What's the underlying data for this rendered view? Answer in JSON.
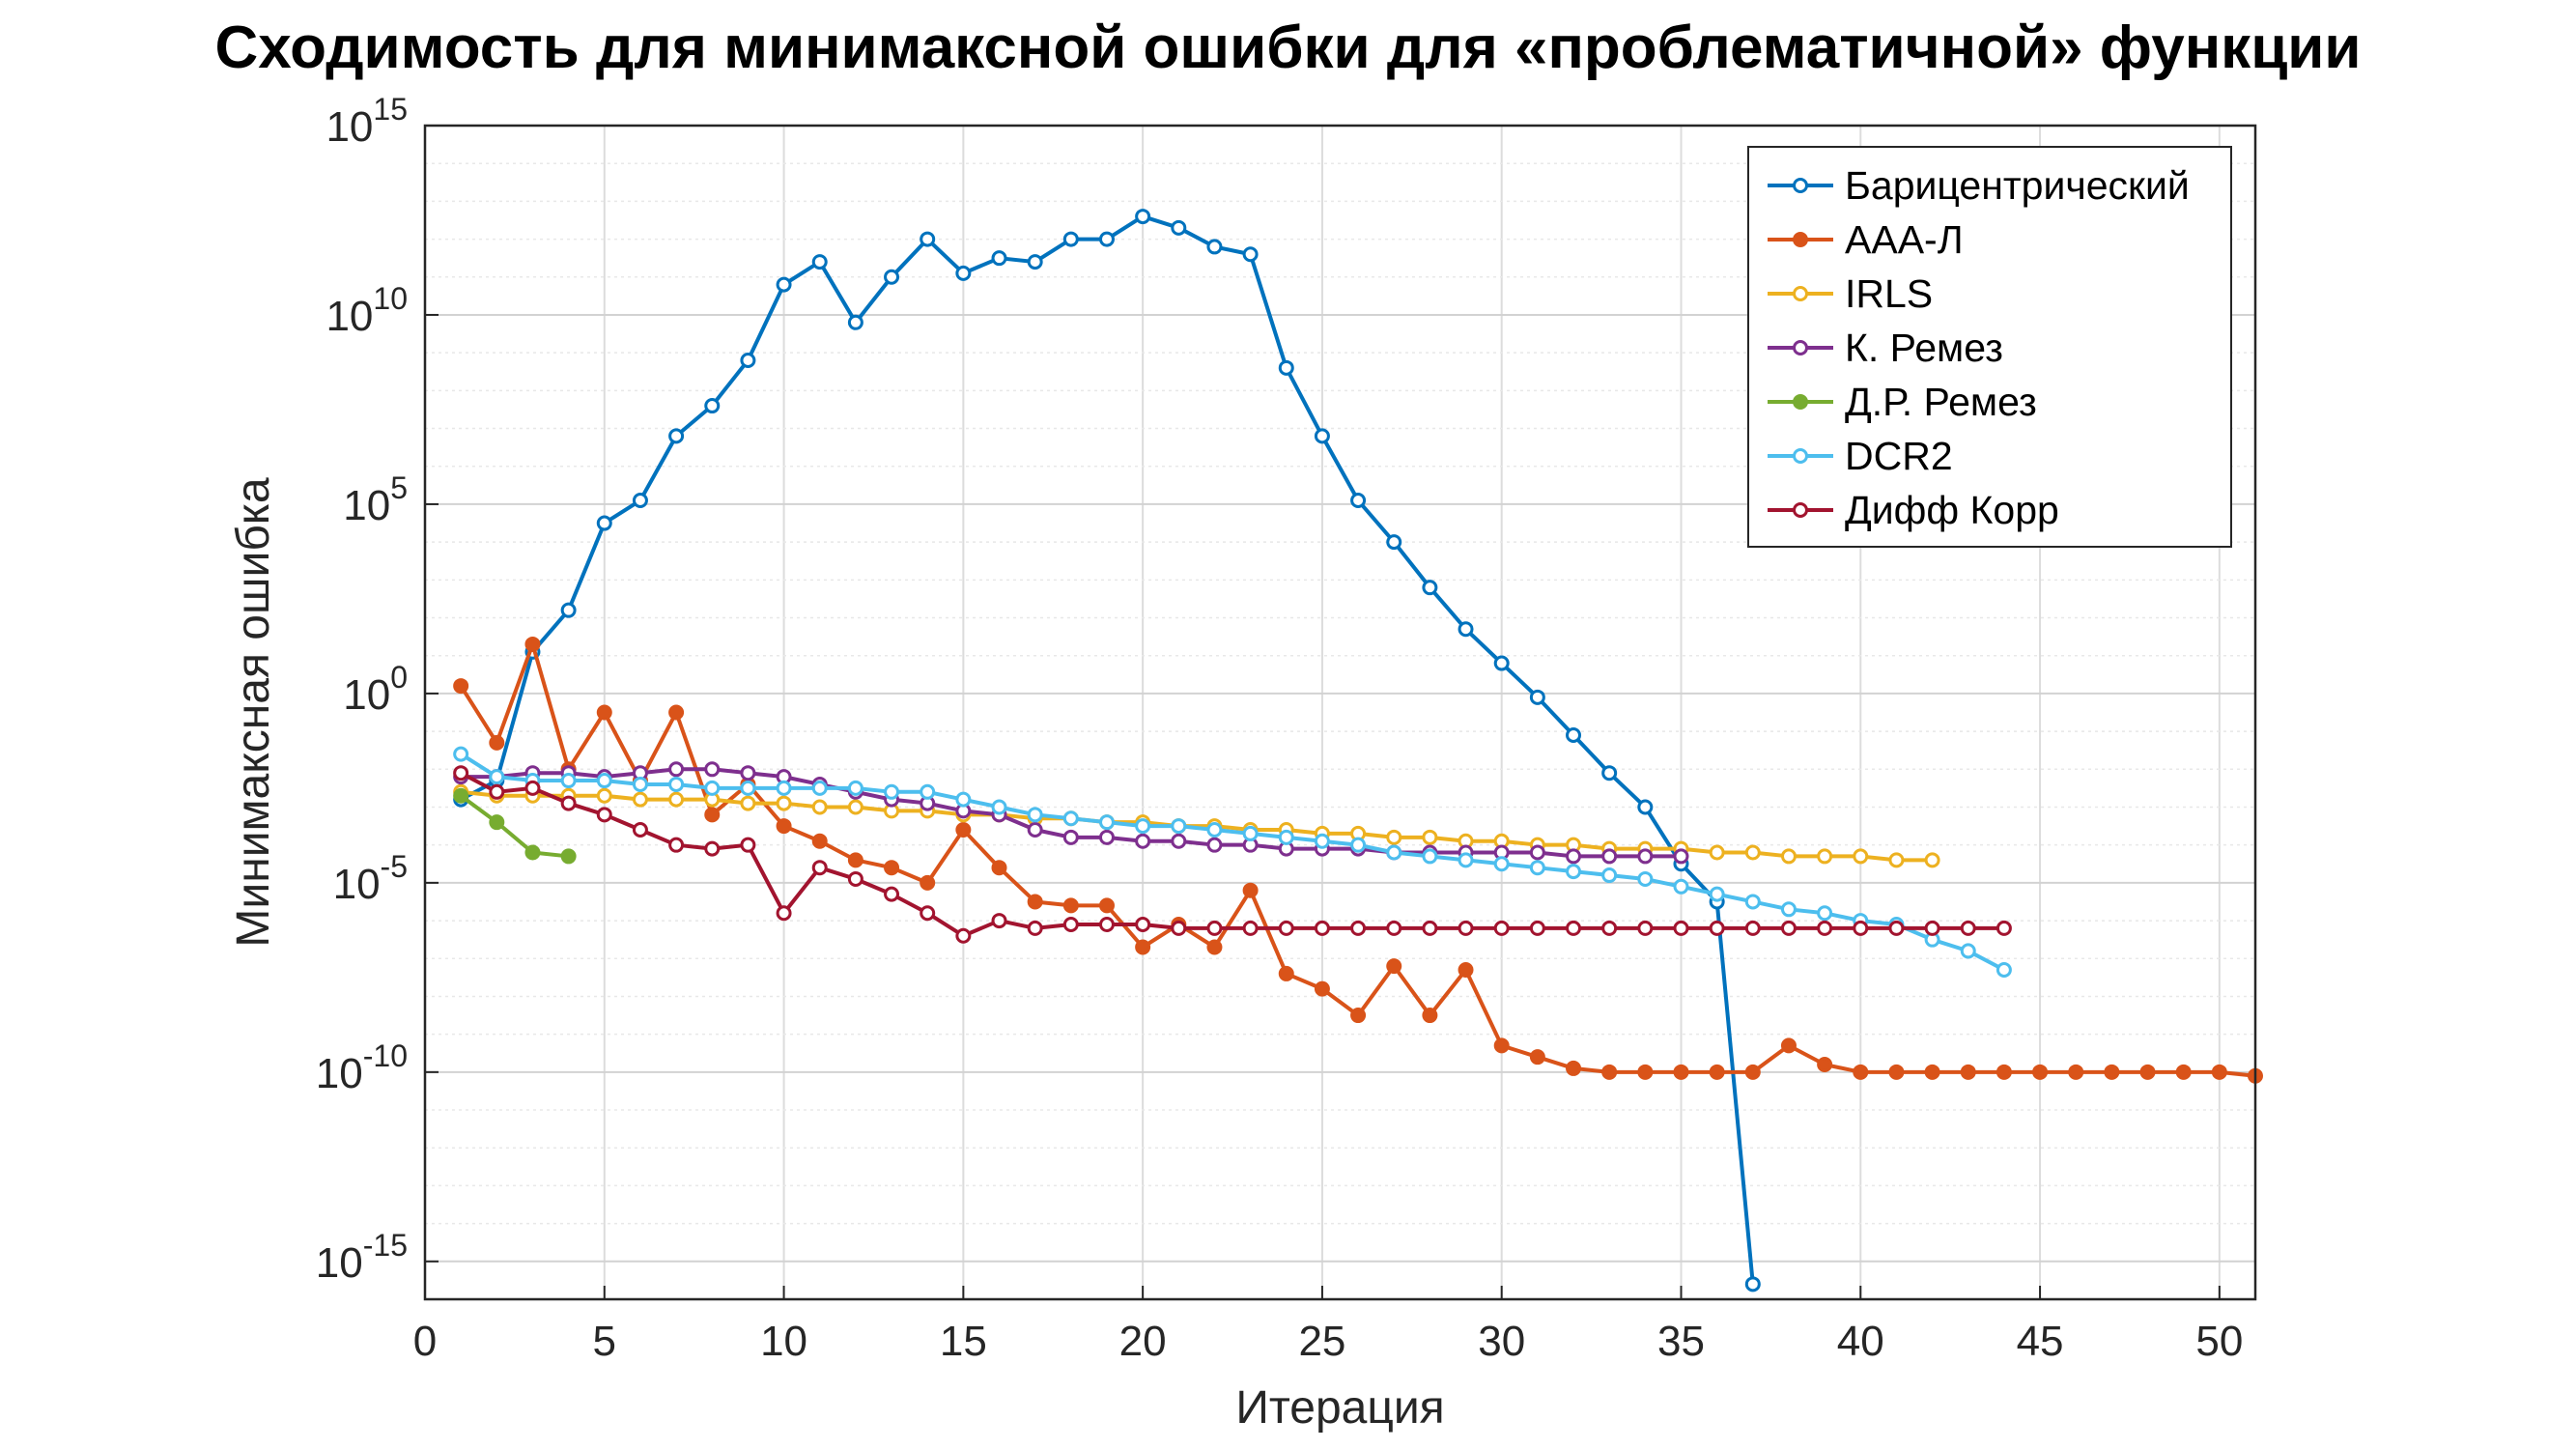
{
  "chart_data": {
    "type": "line",
    "title": "Сходимость для минимаксной ошибки для «проблематичной» функции",
    "xlabel": "Итерация",
    "ylabel": "Минимаксная ошибка",
    "xlim": [
      0,
      51
    ],
    "ylim_log10": [
      -16,
      15
    ],
    "yscale": "log",
    "grid": true,
    "legend_position": "top-right",
    "x_ticks": [
      0,
      5,
      10,
      15,
      20,
      25,
      30,
      35,
      40,
      45,
      50
    ],
    "y_ticks": [
      {
        "base": "10",
        "exp": "15",
        "log": 15
      },
      {
        "base": "10",
        "exp": "10",
        "log": 10
      },
      {
        "base": "10",
        "exp": "5",
        "log": 5
      },
      {
        "base": "10",
        "exp": "0",
        "log": 0
      },
      {
        "base": "10",
        "exp": "-5",
        "log": -5
      },
      {
        "base": "10",
        "exp": "-10",
        "log": -10
      },
      {
        "base": "10",
        "exp": "-15",
        "log": -15
      }
    ],
    "series": [
      {
        "name": "Барицентрический",
        "color": "#0072BD",
        "marker": "hollow",
        "x": [
          1,
          2,
          3,
          4,
          5,
          6,
          7,
          8,
          9,
          10,
          11,
          12,
          13,
          14,
          15,
          16,
          17,
          18,
          19,
          20,
          21,
          22,
          23,
          24,
          25,
          26,
          27,
          28,
          29,
          30,
          31,
          32,
          33,
          34,
          35,
          36,
          37
        ],
        "log10_y": [
          -2.8,
          -2.3,
          1.1,
          2.2,
          4.5,
          5.1,
          6.8,
          7.6,
          8.8,
          10.8,
          11.4,
          9.8,
          11.0,
          12.0,
          11.1,
          11.5,
          11.4,
          12.0,
          12.0,
          12.6,
          12.3,
          11.8,
          11.6,
          8.6,
          6.8,
          5.1,
          4.0,
          2.8,
          1.7,
          0.8,
          -0.1,
          -1.1,
          -2.1,
          -3.0,
          -4.5,
          -5.5,
          -15.6
        ]
      },
      {
        "name": "ААА-Л",
        "color": "#D95319",
        "marker": "filled",
        "x": [
          1,
          2,
          3,
          4,
          5,
          6,
          7,
          8,
          9,
          10,
          11,
          12,
          13,
          14,
          15,
          16,
          17,
          18,
          19,
          20,
          21,
          22,
          23,
          24,
          25,
          26,
          27,
          28,
          29,
          30,
          31,
          32,
          33,
          34,
          35,
          36,
          37,
          38,
          39,
          40,
          41,
          42,
          43,
          44,
          45,
          46,
          47,
          48,
          49,
          50,
          51
        ],
        "log10_y": [
          0.2,
          -1.3,
          1.3,
          -2.0,
          -0.5,
          -2.3,
          -0.5,
          -3.2,
          -2.4,
          -3.5,
          -3.9,
          -4.4,
          -4.6,
          -5.0,
          -3.6,
          -4.6,
          -5.5,
          -5.6,
          -5.6,
          -6.7,
          -6.1,
          -6.7,
          -5.2,
          -7.4,
          -7.8,
          -8.5,
          -7.2,
          -8.5,
          -7.3,
          -9.3,
          -9.6,
          -9.9,
          -10.0,
          -10.0,
          -10.0,
          -10.0,
          -10.0,
          -9.3,
          -9.8,
          -10.0,
          -10.0,
          -10.0,
          -10.0,
          -10.0,
          -10.0,
          -10.0,
          -10.0,
          -10.0,
          -10.0,
          -10.0,
          -10.1
        ]
      },
      {
        "name": "IRLS",
        "color": "#EDB120",
        "marker": "hollow",
        "x": [
          1,
          2,
          3,
          4,
          5,
          6,
          7,
          8,
          9,
          10,
          11,
          12,
          13,
          14,
          15,
          16,
          17,
          18,
          19,
          20,
          21,
          22,
          23,
          24,
          25,
          26,
          27,
          28,
          29,
          30,
          31,
          32,
          33,
          34,
          35,
          36,
          37,
          38,
          39,
          40,
          41,
          42
        ],
        "log10_y": [
          -2.6,
          -2.7,
          -2.7,
          -2.7,
          -2.7,
          -2.8,
          -2.8,
          -2.8,
          -2.9,
          -2.9,
          -3.0,
          -3.0,
          -3.1,
          -3.1,
          -3.2,
          -3.2,
          -3.3,
          -3.3,
          -3.4,
          -3.4,
          -3.5,
          -3.5,
          -3.6,
          -3.6,
          -3.7,
          -3.7,
          -3.8,
          -3.8,
          -3.9,
          -3.9,
          -4.0,
          -4.0,
          -4.1,
          -4.1,
          -4.1,
          -4.2,
          -4.2,
          -4.3,
          -4.3,
          -4.3,
          -4.4,
          -4.4
        ]
      },
      {
        "name": "К. Ремез",
        "color": "#7E2F8E",
        "marker": "hollow",
        "x": [
          1,
          2,
          3,
          4,
          5,
          6,
          7,
          8,
          9,
          10,
          11,
          12,
          13,
          14,
          15,
          16,
          17,
          18,
          19,
          20,
          21,
          22,
          23,
          24,
          25,
          26,
          27,
          28,
          29,
          30,
          31,
          32,
          33,
          34,
          35
        ],
        "log10_y": [
          -2.2,
          -2.2,
          -2.1,
          -2.1,
          -2.2,
          -2.1,
          -2.0,
          -2.0,
          -2.1,
          -2.2,
          -2.4,
          -2.6,
          -2.8,
          -2.9,
          -3.1,
          -3.2,
          -3.6,
          -3.8,
          -3.8,
          -3.9,
          -3.9,
          -4.0,
          -4.0,
          -4.1,
          -4.1,
          -4.1,
          -4.2,
          -4.2,
          -4.2,
          -4.2,
          -4.2,
          -4.3,
          -4.3,
          -4.3,
          -4.3
        ]
      },
      {
        "name": "Д.Р. Ремез",
        "color": "#77AC30",
        "marker": "filled",
        "x": [
          1,
          2,
          3,
          4
        ],
        "log10_y": [
          -2.7,
          -3.4,
          -4.2,
          -4.3
        ]
      },
      {
        "name": "DCR2",
        "color": "#4DBEEE",
        "marker": "hollow",
        "x": [
          1,
          2,
          3,
          4,
          5,
          6,
          7,
          8,
          9,
          10,
          11,
          12,
          13,
          14,
          15,
          16,
          17,
          18,
          19,
          20,
          21,
          22,
          23,
          24,
          25,
          26,
          27,
          28,
          29,
          30,
          31,
          32,
          33,
          34,
          35,
          36,
          37,
          38,
          39,
          40,
          41,
          42,
          43,
          44
        ],
        "log10_y": [
          -1.6,
          -2.2,
          -2.3,
          -2.3,
          -2.3,
          -2.4,
          -2.4,
          -2.5,
          -2.5,
          -2.5,
          -2.5,
          -2.5,
          -2.6,
          -2.6,
          -2.8,
          -3.0,
          -3.2,
          -3.3,
          -3.4,
          -3.5,
          -3.5,
          -3.6,
          -3.7,
          -3.8,
          -3.9,
          -4.0,
          -4.2,
          -4.3,
          -4.4,
          -4.5,
          -4.6,
          -4.7,
          -4.8,
          -4.9,
          -5.1,
          -5.3,
          -5.5,
          -5.7,
          -5.8,
          -6.0,
          -6.1,
          -6.5,
          -6.8,
          -7.3
        ]
      },
      {
        "name": "Дифф Корр",
        "color": "#A2142F",
        "marker": "hollow",
        "x": [
          1,
          2,
          3,
          4,
          5,
          6,
          7,
          8,
          9,
          10,
          11,
          12,
          13,
          14,
          15,
          16,
          17,
          18,
          19,
          20,
          21,
          22,
          23,
          24,
          25,
          26,
          27,
          28,
          29,
          30,
          31,
          32,
          33,
          34,
          35,
          36,
          37,
          38,
          39,
          40,
          41,
          42,
          43,
          44
        ],
        "log10_y": [
          -2.1,
          -2.6,
          -2.5,
          -2.9,
          -3.2,
          -3.6,
          -4.0,
          -4.1,
          -4.0,
          -5.8,
          -4.6,
          -4.9,
          -5.3,
          -5.8,
          -6.4,
          -6.0,
          -6.2,
          -6.1,
          -6.1,
          -6.1,
          -6.2,
          -6.2,
          -6.2,
          -6.2,
          -6.2,
          -6.2,
          -6.2,
          -6.2,
          -6.2,
          -6.2,
          -6.2,
          -6.2,
          -6.2,
          -6.2,
          -6.2,
          -6.2,
          -6.2,
          -6.2,
          -6.2,
          -6.2,
          -6.2,
          -6.2,
          -6.2,
          -6.2
        ]
      }
    ]
  }
}
